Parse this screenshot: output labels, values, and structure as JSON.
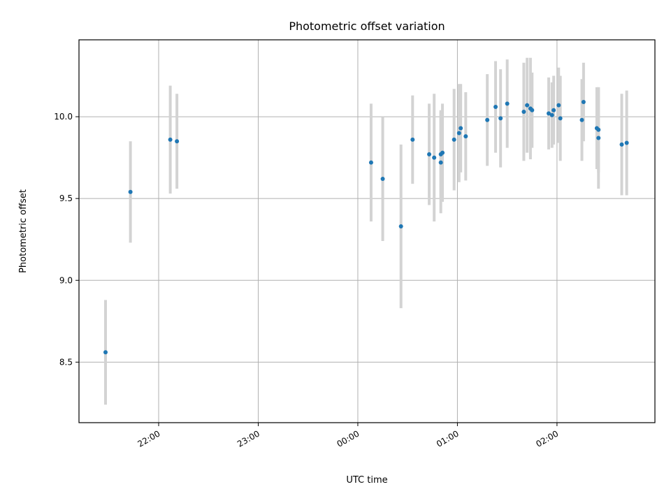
{
  "chart_data": {
    "type": "scatter",
    "title": "Photometric offset variation",
    "xlabel": "UTC time",
    "ylabel": "Photometric offset",
    "x_ticks": [
      "22:00",
      "23:00",
      "00:00",
      "01:00",
      "02:00"
    ],
    "y_ticks": [
      "8.5",
      "9.0",
      "9.5",
      "10.0"
    ],
    "xlim": [
      "21:12",
      "02:59"
    ],
    "ylim": [
      8.13,
      10.47
    ],
    "grid": true,
    "colors": {
      "points": "#1f77b4",
      "errorbars": "#d3d3d3",
      "grid": "#b0b0b0"
    },
    "series": [
      {
        "points": [
          {
            "x": "21:28",
            "y": 8.56,
            "err": 0.32
          },
          {
            "x": "21:43",
            "y": 9.54,
            "err": 0.31
          },
          {
            "x": "22:07",
            "y": 9.86,
            "err": 0.33
          },
          {
            "x": "22:11",
            "y": 9.85,
            "err": 0.29
          },
          {
            "x": "00:08",
            "y": 9.72,
            "err": 0.36
          },
          {
            "x": "00:15",
            "y": 9.62,
            "err": 0.38
          },
          {
            "x": "00:26",
            "y": 9.33,
            "err": 0.5
          },
          {
            "x": "00:33",
            "y": 9.86,
            "err": 0.27
          },
          {
            "x": "00:43",
            "y": 9.77,
            "err": 0.31
          },
          {
            "x": "00:46",
            "y": 9.75,
            "err": 0.39
          },
          {
            "x": "00:50",
            "y": 9.77,
            "err": 0.27
          },
          {
            "x": "00:50",
            "y": 9.72,
            "err": 0.31
          },
          {
            "x": "00:51",
            "y": 9.78,
            "err": 0.3
          },
          {
            "x": "00:58",
            "y": 9.86,
            "err": 0.31
          },
          {
            "x": "01:01",
            "y": 9.9,
            "err": 0.3
          },
          {
            "x": "01:02",
            "y": 9.93,
            "err": 0.27
          },
          {
            "x": "01:05",
            "y": 9.88,
            "err": 0.27
          },
          {
            "x": "01:18",
            "y": 9.98,
            "err": 0.28
          },
          {
            "x": "01:23",
            "y": 10.06,
            "err": 0.28
          },
          {
            "x": "01:26",
            "y": 9.99,
            "err": 0.3
          },
          {
            "x": "01:30",
            "y": 10.08,
            "err": 0.27
          },
          {
            "x": "01:40",
            "y": 10.03,
            "err": 0.3
          },
          {
            "x": "01:42",
            "y": 10.07,
            "err": 0.29
          },
          {
            "x": "01:44",
            "y": 10.05,
            "err": 0.31
          },
          {
            "x": "01:45",
            "y": 10.04,
            "err": 0.23
          },
          {
            "x": "01:55",
            "y": 10.02,
            "err": 0.22
          },
          {
            "x": "01:57",
            "y": 10.01,
            "err": 0.2
          },
          {
            "x": "01:58",
            "y": 10.04,
            "err": 0.21
          },
          {
            "x": "02:01",
            "y": 10.07,
            "err": 0.23
          },
          {
            "x": "02:02",
            "y": 9.99,
            "err": 0.26
          },
          {
            "x": "02:15",
            "y": 9.98,
            "err": 0.25
          },
          {
            "x": "02:16",
            "y": 10.09,
            "err": 0.24
          },
          {
            "x": "02:24",
            "y": 9.93,
            "err": 0.25
          },
          {
            "x": "02:25",
            "y": 9.92,
            "err": 0.26
          },
          {
            "x": "02:25",
            "y": 9.87,
            "err": 0.31
          },
          {
            "x": "02:39",
            "y": 9.83,
            "err": 0.31
          },
          {
            "x": "02:42",
            "y": 9.84,
            "err": 0.32
          }
        ]
      }
    ]
  }
}
